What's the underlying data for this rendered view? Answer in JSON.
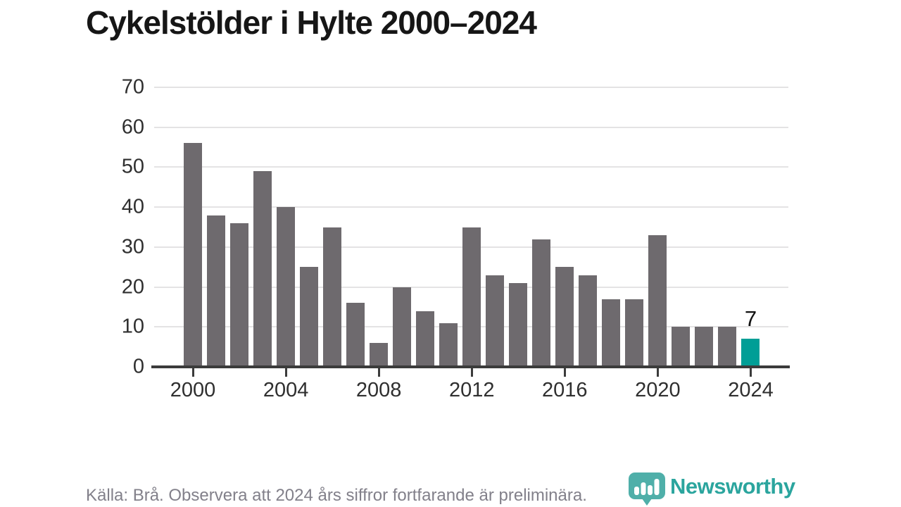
{
  "title": "Cykelstölder i Hylte 2000–2024",
  "footer": {
    "source_text": "Källa: Brå. Observera att 2024 års siffror fortfarande är preliminära.",
    "brand_name": "Newsworthy",
    "brand_icon": "newsworthy-speech-bubble-bar-chart-icon"
  },
  "colors": {
    "bar_default": "#6e6a6e",
    "bar_highlight": "#009e96",
    "gridline": "#e4e3e4",
    "axis": "#3b3b3b",
    "brand_teal": "#2ba59e",
    "title_text": "#161616",
    "tick_text": "#2f2f2f",
    "source_text": "#82808a"
  },
  "chart_data": {
    "type": "bar",
    "title": "Cykelstölder i Hylte 2000–2024",
    "x": [
      2000,
      2001,
      2002,
      2003,
      2004,
      2005,
      2006,
      2007,
      2008,
      2009,
      2010,
      2011,
      2012,
      2013,
      2014,
      2015,
      2016,
      2017,
      2018,
      2019,
      2020,
      2021,
      2022,
      2023,
      2024
    ],
    "values": [
      56,
      38,
      36,
      49,
      40,
      25,
      35,
      16,
      6,
      20,
      14,
      11,
      35,
      23,
      21,
      32,
      25,
      23,
      17,
      17,
      33,
      10,
      10,
      10,
      7
    ],
    "highlight_index": 24,
    "highlight_label": "7",
    "xlabel": "",
    "ylabel": "",
    "ylim": [
      0,
      70
    ],
    "yticks": [
      0,
      10,
      20,
      30,
      40,
      50,
      60,
      70
    ],
    "xticks": [
      2000,
      2004,
      2008,
      2012,
      2016,
      2020,
      2024
    ],
    "grid": true,
    "legend": false
  }
}
